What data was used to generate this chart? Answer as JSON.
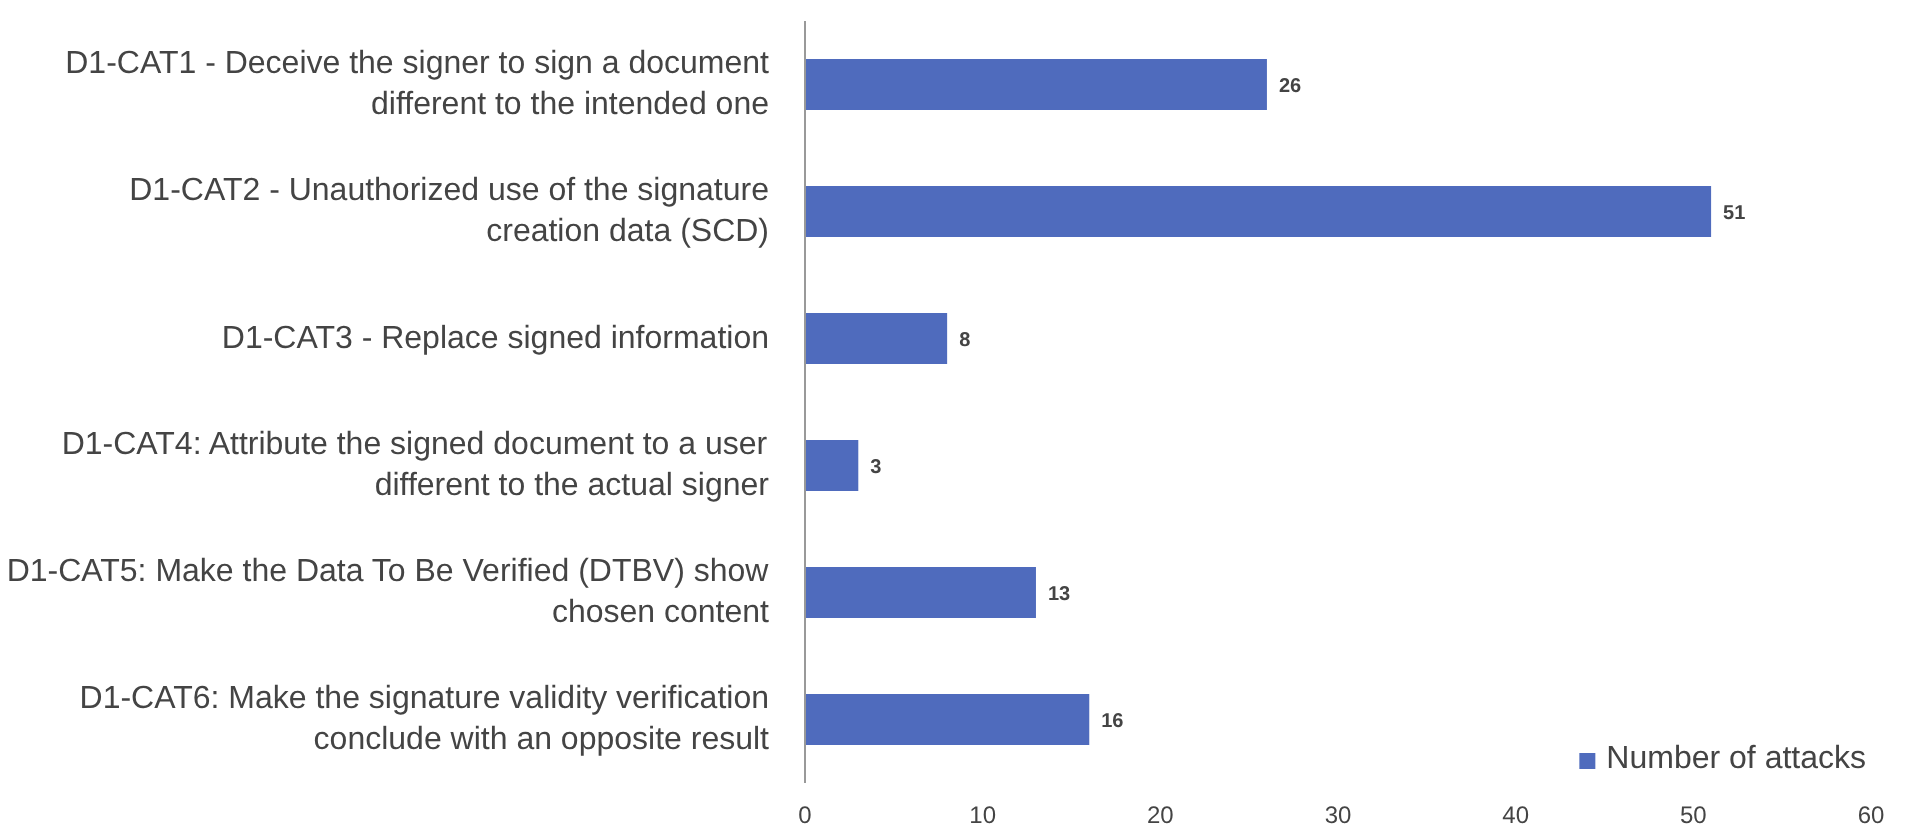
{
  "chart_data": {
    "type": "bar",
    "orientation": "horizontal",
    "categories": [
      "D1-CAT1 - Deceive the signer to sign a document different to the intended one",
      "D1-CAT2 - Unauthorized use of the signature creation data (SCD)",
      "D1-CAT3 - Replace signed information",
      "D1-CAT4: Attribute the signed document to a user different to the actual signer",
      "D1-CAT5: Make the Data To Be Verified (DTBV) show chosen content",
      "D1-CAT6: Make the signature validity verification conclude with an opposite result"
    ],
    "series": [
      {
        "name": "Number of attacks",
        "color": "#4f6bbd",
        "values": [
          26,
          51,
          8,
          3,
          13,
          16
        ]
      }
    ],
    "xlim": [
      0,
      60
    ],
    "xticks": [
      0,
      10,
      20,
      30,
      40,
      50,
      60
    ],
    "data_labels": true,
    "legend": "bottom right",
    "grid": false
  }
}
